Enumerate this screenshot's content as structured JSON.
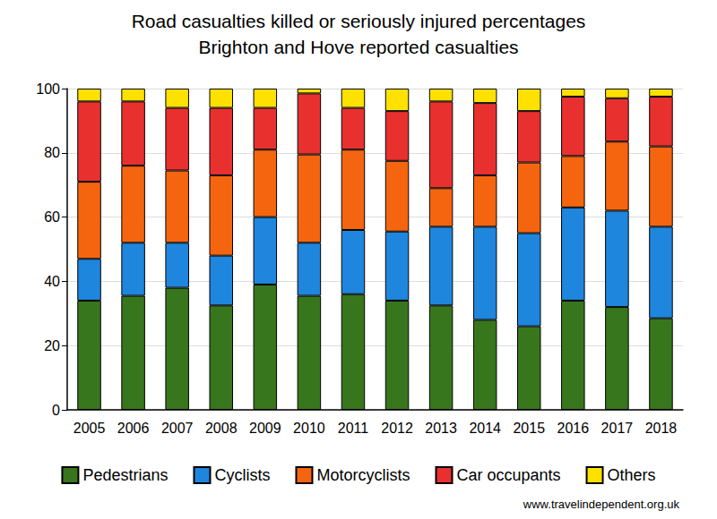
{
  "chart_data": {
    "type": "bar",
    "title": "Road casualties killed or seriously injured percentages",
    "subtitle": "Brighton and Hove reported casualties",
    "annotations": [
      "www.travelindependent.org.uk"
    ],
    "categories": [
      "2005",
      "2006",
      "2007",
      "2008",
      "2009",
      "2010",
      "2011",
      "2012",
      "2013",
      "2014",
      "2015",
      "2016",
      "2017",
      "2018"
    ],
    "series": [
      {
        "name": "Pedestrians",
        "color": "#38761d",
        "values": [
          34,
          35.5,
          38,
          32.5,
          39,
          35.5,
          36,
          34,
          32.5,
          28,
          26,
          34,
          32,
          28.5
        ]
      },
      {
        "name": "Cyclists",
        "color": "#1f86de",
        "values": [
          13,
          16.5,
          14,
          15.5,
          21,
          16.5,
          20,
          21.5,
          24.5,
          29,
          29,
          29,
          30,
          28.5
        ]
      },
      {
        "name": "Motorcyclists",
        "color": "#f5650f",
        "values": [
          24,
          24,
          22.5,
          25,
          21,
          27.5,
          25,
          22,
          12,
          16,
          22,
          16,
          21.5,
          25
        ]
      },
      {
        "name": "Car occupants",
        "color": "#e8312f",
        "values": [
          25,
          20,
          19.5,
          21,
          13,
          19,
          13,
          15.5,
          27,
          22.5,
          16,
          18.5,
          13.5,
          15.5
        ]
      },
      {
        "name": "Others",
        "color": "#ffe100",
        "values": [
          4,
          4,
          6,
          6,
          6,
          1.5,
          6,
          7,
          4,
          4.5,
          7,
          2.5,
          3,
          2.5
        ]
      }
    ],
    "stacked": true,
    "ylim": [
      0,
      100
    ],
    "yticks": [
      0,
      20,
      40,
      60,
      80,
      100
    ],
    "grid": true,
    "legend": "bottom"
  }
}
